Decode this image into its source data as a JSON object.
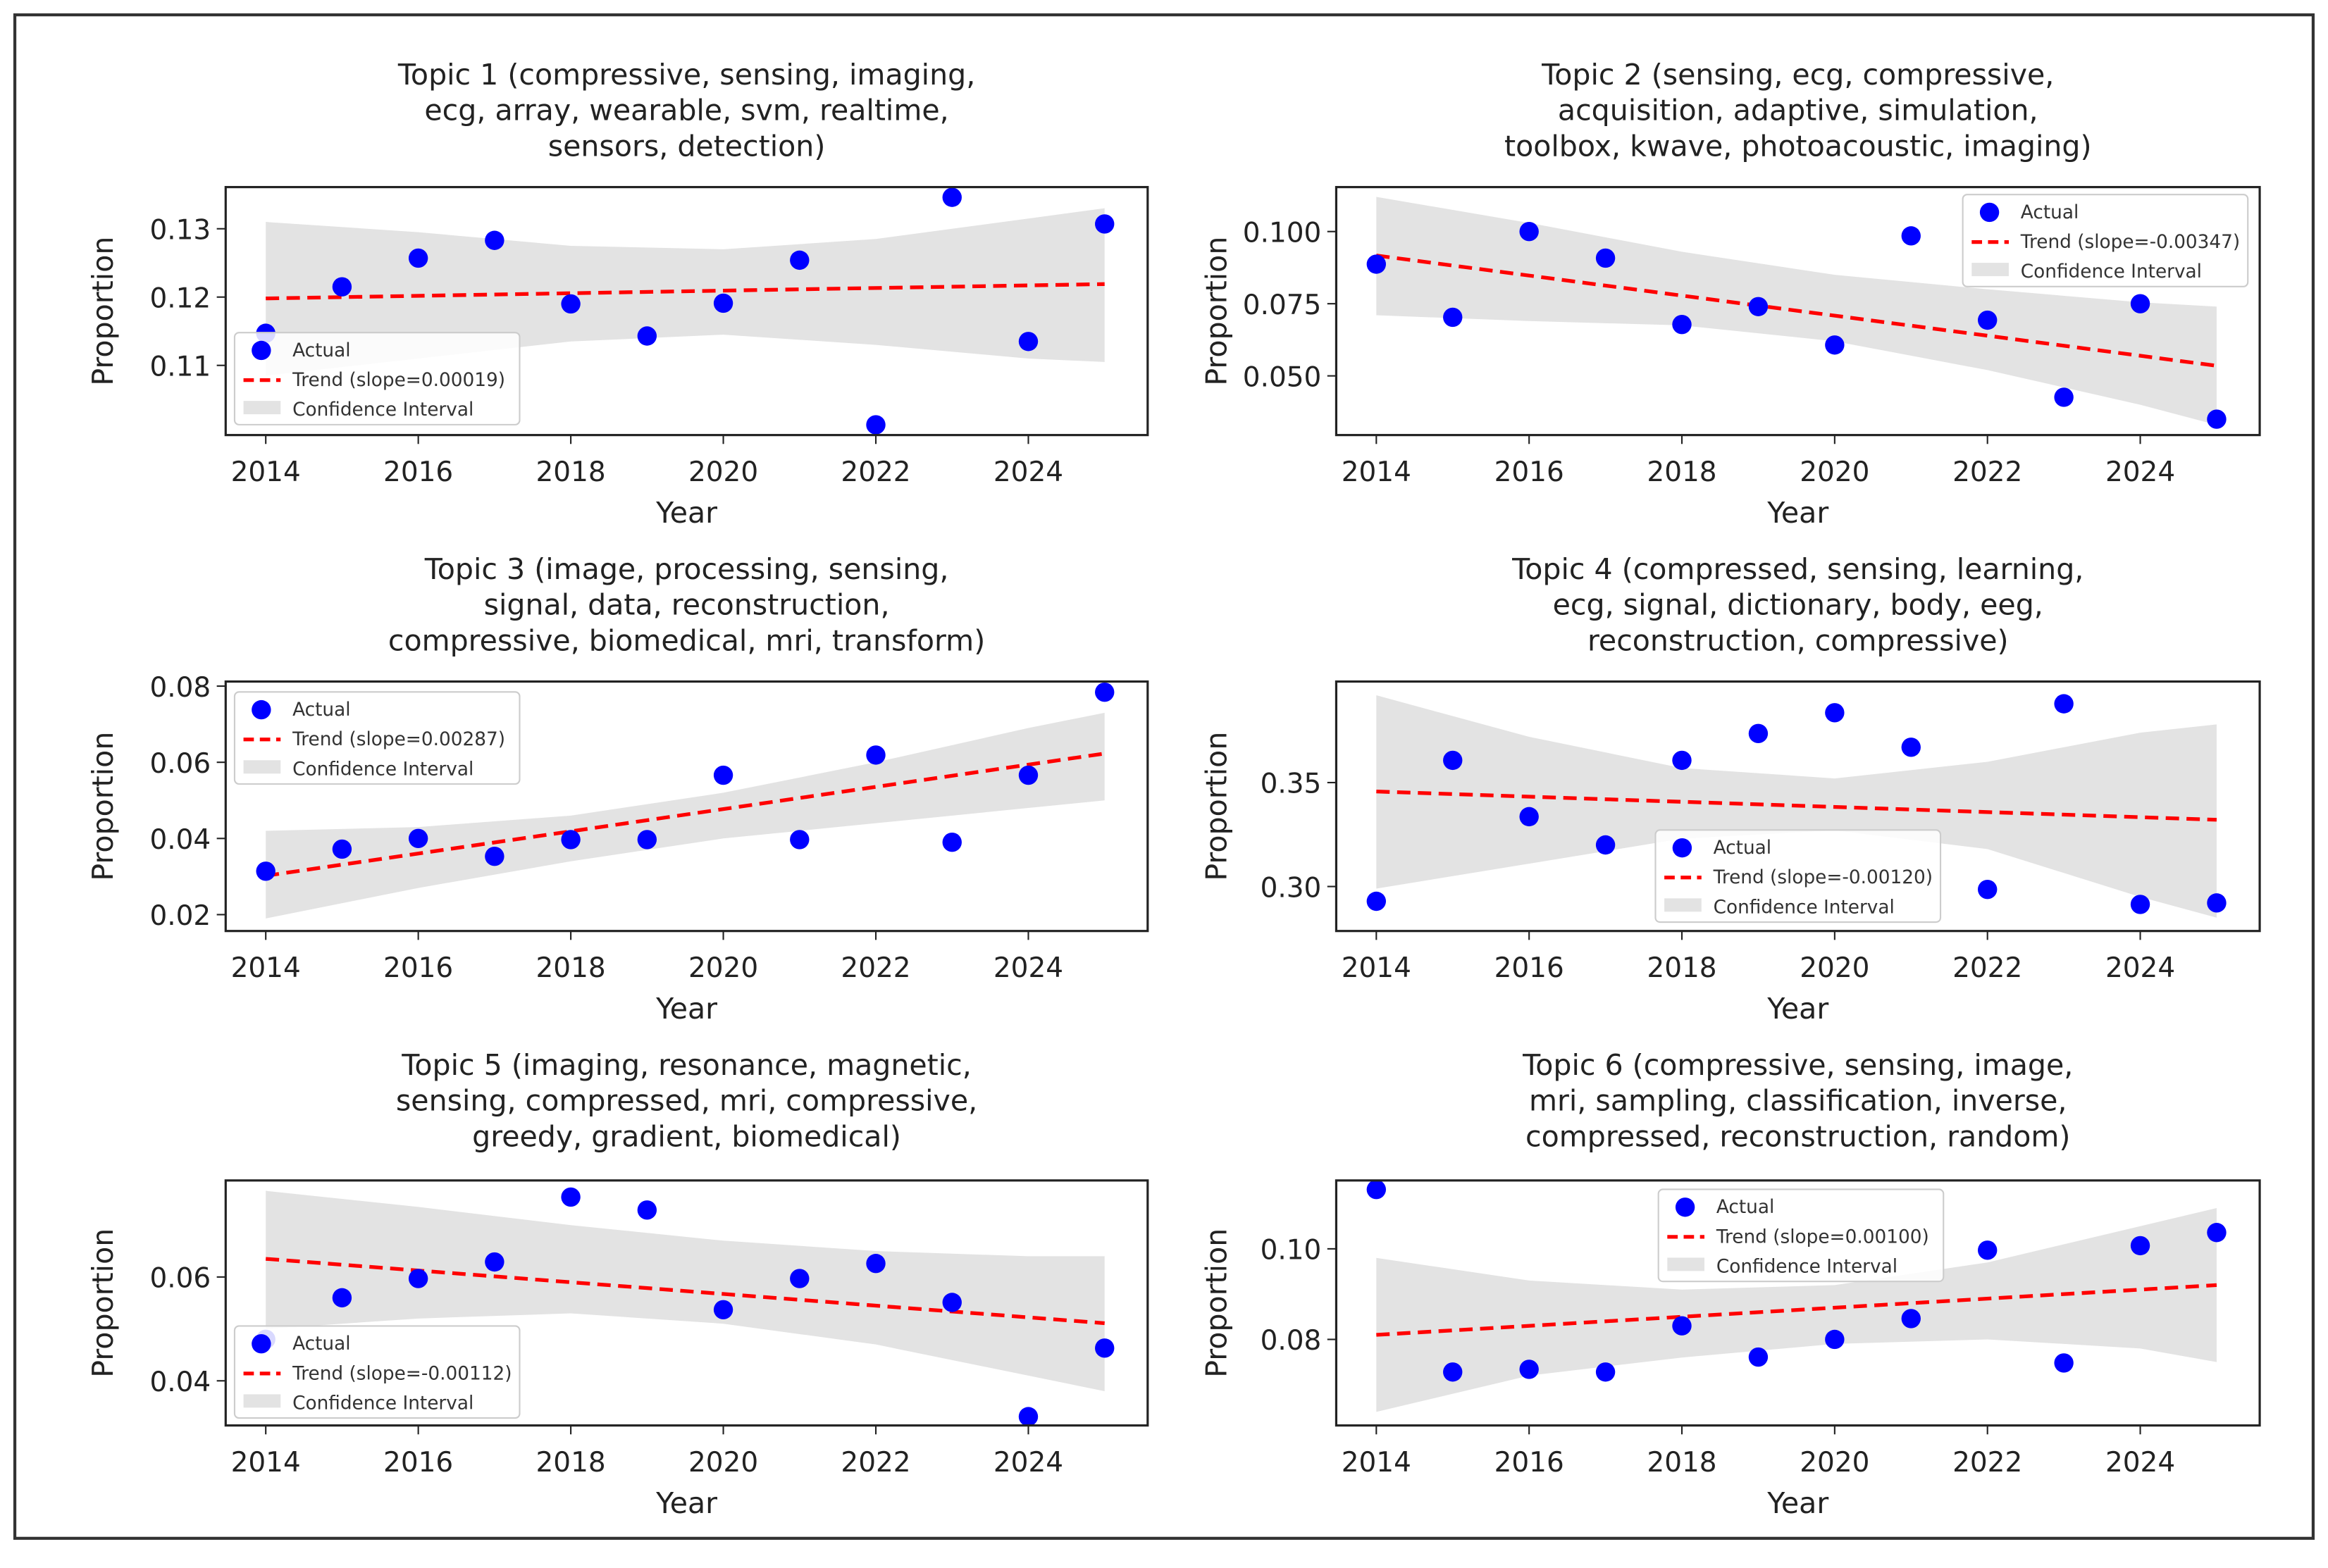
{
  "colors": {
    "actual": "#0000ff",
    "trend": "#ff0000",
    "ci": "#e3e3e3"
  },
  "chart_data": [
    {
      "type": "scatter",
      "title_lines": [
        "Topic 1 (compressive, sensing, imaging,",
        "ecg, array, wearable, svm, realtime,",
        "sensors, detection)"
      ],
      "xlabel": "Year",
      "ylabel": "Proportion",
      "x": [
        2014,
        2015,
        2016,
        2017,
        2018,
        2019,
        2020,
        2021,
        2022,
        2023,
        2024,
        2025
      ],
      "actual": [
        0.1147,
        0.1215,
        0.1257,
        0.1283,
        0.119,
        0.1143,
        0.1191,
        0.1254,
        0.1013,
        0.1346,
        0.1135,
        0.1307
      ],
      "trend": {
        "start": 0.1198,
        "end": 0.1219,
        "slope": 0.00019
      },
      "ci": {
        "x": [
          2014,
          2016,
          2018,
          2020,
          2022,
          2024,
          2025
        ],
        "upper": [
          0.131,
          0.1295,
          0.1275,
          0.127,
          0.1285,
          0.1315,
          0.133
        ],
        "lower": [
          0.1085,
          0.111,
          0.1135,
          0.1145,
          0.113,
          0.111,
          0.1105
        ]
      },
      "ylim": [
        0.0998,
        0.1361
      ],
      "yticks": [
        0.11,
        0.12,
        0.13
      ],
      "ytick_labels": [
        "0.11",
        "0.12",
        "0.13"
      ],
      "xticks": [
        2014,
        2016,
        2018,
        2020,
        2022,
        2024
      ],
      "xtick_labels": [
        "2014",
        "2016",
        "2018",
        "2020",
        "2022",
        "2024"
      ],
      "legend": {
        "placement": "lower-left",
        "entries": [
          "Actual",
          "Trend (slope=0.00019)",
          "Confidence Interval"
        ]
      }
    },
    {
      "type": "scatter",
      "title_lines": [
        "Topic 2 (sensing, ecg, compressive,",
        "acquisition, adaptive, simulation,",
        "toolbox, kwave, photoacoustic, imaging)"
      ],
      "xlabel": "Year",
      "ylabel": "Proportion",
      "x": [
        2014,
        2015,
        2016,
        2017,
        2018,
        2019,
        2020,
        2021,
        2022,
        2023,
        2024,
        2025
      ],
      "actual": [
        0.0887,
        0.0703,
        0.1,
        0.0908,
        0.0678,
        0.074,
        0.0607,
        0.0985,
        0.0693,
        0.0426,
        0.075,
        0.035
      ],
      "trend": {
        "start": 0.0917,
        "end": 0.0535,
        "slope": -0.00347
      },
      "ci": {
        "x": [
          2014,
          2016,
          2018,
          2020,
          2022,
          2024,
          2025
        ],
        "upper": [
          0.112,
          0.103,
          0.093,
          0.085,
          0.08,
          0.0755,
          0.074
        ],
        "lower": [
          0.071,
          0.069,
          0.0675,
          0.062,
          0.052,
          0.04,
          0.033
        ]
      },
      "ylim": [
        0.0295,
        0.1154
      ],
      "yticks": [
        0.05,
        0.075,
        0.1
      ],
      "ytick_labels": [
        "0.050",
        "0.075",
        "0.100"
      ],
      "xticks": [
        2014,
        2016,
        2018,
        2020,
        2022,
        2024
      ],
      "xtick_labels": [
        "2014",
        "2016",
        "2018",
        "2020",
        "2022",
        "2024"
      ],
      "legend": {
        "placement": "upper-right",
        "entries": [
          "Actual",
          "Trend (slope=-0.00347)",
          "Confidence Interval"
        ]
      }
    },
    {
      "type": "scatter",
      "title_lines": [
        "Topic 3 (image, processing, sensing,",
        "signal, data, reconstruction,",
        "compressive, biomedical, mri, transform)"
      ],
      "xlabel": "Year",
      "ylabel": "Proportion",
      "x": [
        2014,
        2015,
        2016,
        2017,
        2018,
        2019,
        2020,
        2021,
        2022,
        2023,
        2024,
        2025
      ],
      "actual": [
        0.0314,
        0.0372,
        0.04,
        0.0353,
        0.0397,
        0.0397,
        0.0566,
        0.0397,
        0.0619,
        0.039,
        0.0566,
        0.0784
      ],
      "trend": {
        "start": 0.0302,
        "end": 0.0623,
        "slope": 0.00287
      },
      "ci": {
        "x": [
          2014,
          2016,
          2018,
          2020,
          2022,
          2024,
          2025
        ],
        "upper": [
          0.042,
          0.043,
          0.046,
          0.052,
          0.06,
          0.069,
          0.073
        ],
        "lower": [
          0.019,
          0.027,
          0.034,
          0.04,
          0.044,
          0.048,
          0.05
        ]
      },
      "ylim": [
        0.0157,
        0.0812
      ],
      "yticks": [
        0.02,
        0.04,
        0.06,
        0.08
      ],
      "ytick_labels": [
        "0.02",
        "0.04",
        "0.06",
        "0.08"
      ],
      "xticks": [
        2014,
        2016,
        2018,
        2020,
        2022,
        2024
      ],
      "xtick_labels": [
        "2014",
        "2016",
        "2018",
        "2020",
        "2022",
        "2024"
      ],
      "legend": {
        "placement": "upper-left",
        "entries": [
          "Actual",
          "Trend (slope=0.00287)",
          "Confidence Interval"
        ]
      }
    },
    {
      "type": "scatter",
      "title_lines": [
        "Topic 4 (compressed, sensing, learning,",
        "ecg, signal, dictionary, body, eeg,",
        "reconstruction, compressive)"
      ],
      "xlabel": "Year",
      "ylabel": "Proportion",
      "x": [
        2014,
        2015,
        2016,
        2017,
        2018,
        2019,
        2020,
        2021,
        2022,
        2023,
        2024,
        2025
      ],
      "actual": [
        0.2929,
        0.3607,
        0.3336,
        0.32,
        0.3607,
        0.3736,
        0.3836,
        0.367,
        0.2986,
        0.3879,
        0.2914,
        0.2921
      ],
      "trend": {
        "start": 0.3457,
        "end": 0.3321,
        "slope": -0.0012
      },
      "ci": {
        "x": [
          2014,
          2016,
          2018,
          2020,
          2022,
          2024,
          2025
        ],
        "upper": [
          0.392,
          0.372,
          0.357,
          0.352,
          0.36,
          0.374,
          0.378
        ],
        "lower": [
          0.299,
          0.311,
          0.323,
          0.327,
          0.318,
          0.295,
          0.285
        ]
      },
      "ylim": [
        0.2786,
        0.3986
      ],
      "yticks": [
        0.3,
        0.35
      ],
      "ytick_labels": [
        "0.30",
        "0.35"
      ],
      "xticks": [
        2014,
        2016,
        2018,
        2020,
        2022,
        2024
      ],
      "xtick_labels": [
        "2014",
        "2016",
        "2018",
        "2020",
        "2022",
        "2024"
      ],
      "legend": {
        "placement": "lower-center",
        "entries": [
          "Actual",
          "Trend (slope=-0.00120)",
          "Confidence Interval"
        ]
      }
    },
    {
      "type": "scatter",
      "title_lines": [
        "Topic 5 (imaging, resonance, magnetic,",
        "sensing, compressed, mri, compressive,",
        "greedy, gradient, biomedical)"
      ],
      "xlabel": "Year",
      "ylabel": "Proportion",
      "x": [
        2014,
        2015,
        2016,
        2017,
        2018,
        2019,
        2020,
        2021,
        2022,
        2023,
        2024,
        2025
      ],
      "actual": [
        0.048,
        0.056,
        0.0597,
        0.0629,
        0.0754,
        0.0729,
        0.0537,
        0.0597,
        0.0626,
        0.0551,
        0.0331,
        0.0463
      ],
      "trend": {
        "start": 0.0635,
        "end": 0.0511,
        "slope": -0.00112
      },
      "ci": {
        "x": [
          2014,
          2016,
          2018,
          2020,
          2022,
          2024,
          2025
        ],
        "upper": [
          0.0766,
          0.0735,
          0.07,
          0.067,
          0.065,
          0.064,
          0.064
        ],
        "lower": [
          0.05,
          0.052,
          0.053,
          0.051,
          0.047,
          0.041,
          0.038
        ]
      },
      "ylim": [
        0.0314,
        0.0786
      ],
      "yticks": [
        0.04,
        0.06
      ],
      "ytick_labels": [
        "0.04",
        "0.06"
      ],
      "xticks": [
        2014,
        2016,
        2018,
        2020,
        2022,
        2024
      ],
      "xtick_labels": [
        "2014",
        "2016",
        "2018",
        "2020",
        "2022",
        "2024"
      ],
      "legend": {
        "placement": "lower-left",
        "entries": [
          "Actual",
          "Trend (slope=-0.00112)",
          "Confidence Interval"
        ]
      }
    },
    {
      "type": "scatter",
      "title_lines": [
        "Topic 6 (compressive, sensing, image,",
        "mri, sampling, classification, inverse,",
        "compressed, reconstruction, random)"
      ],
      "xlabel": "Year",
      "ylabel": "Proportion",
      "x": [
        2014,
        2015,
        2016,
        2017,
        2018,
        2019,
        2020,
        2021,
        2022,
        2023,
        2024,
        2025
      ],
      "actual": [
        0.1131,
        0.0728,
        0.0734,
        0.0728,
        0.083,
        0.0761,
        0.08,
        0.0846,
        0.0997,
        0.0748,
        0.1007,
        0.1036
      ],
      "trend": {
        "start": 0.081,
        "end": 0.092,
        "slope": 0.001
      },
      "ci": {
        "x": [
          2014,
          2016,
          2018,
          2020,
          2022,
          2024,
          2025
        ],
        "upper": [
          0.098,
          0.093,
          0.091,
          0.092,
          0.097,
          0.105,
          0.109
        ],
        "lower": [
          0.064,
          0.072,
          0.076,
          0.079,
          0.08,
          0.078,
          0.075
        ]
      },
      "ylim": [
        0.061,
        0.1151
      ],
      "yticks": [
        0.08,
        0.1
      ],
      "ytick_labels": [
        "0.08",
        "0.10"
      ],
      "xticks": [
        2014,
        2016,
        2018,
        2020,
        2022,
        2024
      ],
      "xtick_labels": [
        "2014",
        "2016",
        "2018",
        "2020",
        "2022",
        "2024"
      ],
      "legend": {
        "placement": "upper-center",
        "entries": [
          "Actual",
          "Trend (slope=0.00100)",
          "Confidence Interval"
        ]
      }
    }
  ]
}
